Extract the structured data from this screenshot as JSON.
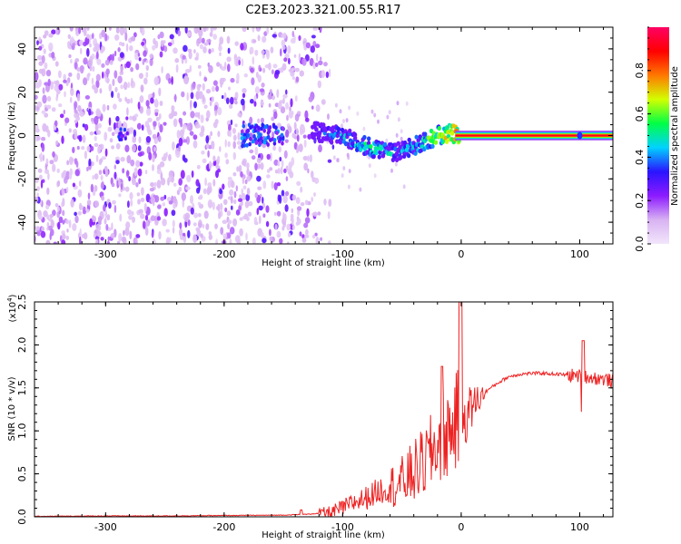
{
  "figure": {
    "title": "C2E3.2023.321.00.55.R17"
  },
  "chart_data": [
    {
      "type": "heatmap",
      "xlabel": "Height of straight line (km)",
      "ylabel": "Frequency (Hz)",
      "xlim": [
        -360,
        128
      ],
      "ylim": [
        -50,
        50
      ],
      "xticks": [
        -300,
        -200,
        -100,
        0,
        100
      ],
      "yticks": [
        -40,
        -20,
        0,
        20,
        40
      ],
      "colorbar": {
        "label": "Normalized spectral amplitude",
        "range": [
          0.0,
          1.0
        ],
        "ticks": [
          0.0,
          0.2,
          0.4,
          0.6,
          0.8
        ],
        "colors": [
          "#f2e6fb",
          "#d8b2f2",
          "#8c1aff",
          "#2a14ff",
          "#00d2ff",
          "#00ff46",
          "#d2ff00",
          "#ff7800",
          "#ff0000",
          "#ff0064"
        ]
      },
      "noise_region": {
        "x_range": [
          -360,
          -105
        ],
        "y_range": [
          -50,
          50
        ],
        "amplitude_range": [
          0.05,
          0.3
        ]
      },
      "signal_ridge": {
        "x": [
          -125,
          -115,
          -100,
          -90,
          -80,
          -70,
          -60,
          -50,
          -40,
          -30,
          -20,
          -10,
          0,
          30,
          60,
          100,
          128
        ],
        "y": [
          2,
          1,
          0,
          -3,
          -5,
          -7,
          -8,
          -7,
          -5,
          -3,
          0,
          1,
          0,
          0,
          0,
          0,
          0
        ],
        "amplitude": [
          0.35,
          0.45,
          0.5,
          0.55,
          0.6,
          0.6,
          0.55,
          0.5,
          0.55,
          0.65,
          0.75,
          0.85,
          0.9,
          0.9,
          0.9,
          0.9,
          0.9
        ]
      },
      "grid": false
    },
    {
      "type": "line",
      "xlabel": "Height of straight line (km)",
      "ylabel": "SNR (10 * v/v)",
      "yunit_multiplier": "(x10",
      "yunit_exponent": "4",
      "yunit_close": ")",
      "xlim": [
        -360,
        128
      ],
      "ylim": [
        0,
        2.5
      ],
      "xticks": [
        -300,
        -200,
        -100,
        0,
        100
      ],
      "yticks": [
        0.0,
        0.5,
        1.0,
        1.5,
        2.0,
        2.5
      ],
      "grid": false,
      "series": [
        {
          "color": "#ee2222",
          "x": [
            -360,
            -300,
            -250,
            -200,
            -150,
            -130,
            -110,
            -100,
            -90,
            -80,
            -70,
            -60,
            -50,
            -40,
            -30,
            -20,
            -10,
            -5,
            0,
            5,
            10,
            20,
            30,
            40,
            50,
            60,
            70,
            80,
            90,
            100,
            110,
            120,
            128
          ],
          "y": [
            0.005,
            0.01,
            0.01,
            0.015,
            0.02,
            0.03,
            0.05,
            0.1,
            0.17,
            0.22,
            0.3,
            0.35,
            0.4,
            0.52,
            0.65,
            0.85,
            1.0,
            1.1,
            1.15,
            1.2,
            1.3,
            1.45,
            1.55,
            1.63,
            1.66,
            1.67,
            1.67,
            1.66,
            1.65,
            1.64,
            1.62,
            1.6,
            1.58
          ]
        }
      ]
    }
  ]
}
